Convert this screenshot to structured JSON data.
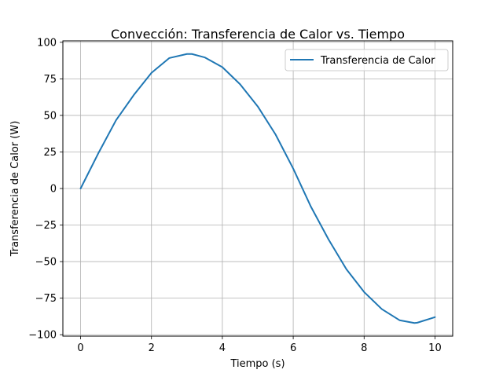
{
  "chart_data": {
    "type": "line",
    "title": "Convección: Transferencia de Calor vs. Tiempo",
    "xlabel": "Tiempo (s)",
    "ylabel": "Transferencia de Calor (W)",
    "xlim": [
      -0.5,
      10.5
    ],
    "ylim": [
      -101,
      101
    ],
    "grid": true,
    "legend_position": "top-right",
    "x_ticks": [
      0,
      2,
      4,
      6,
      8,
      10
    ],
    "x_tick_labels": [
      "0",
      "2",
      "4",
      "6",
      "8",
      "10"
    ],
    "y_ticks": [
      100,
      75,
      50,
      25,
      0,
      -25,
      -50,
      -75,
      -100
    ],
    "y_tick_labels": [
      "100",
      "75",
      "50",
      "25",
      "0",
      "−25",
      "−50",
      "−75",
      "−100"
    ],
    "series": [
      {
        "name": "Transferencia de Calor",
        "color": "#1f77b4",
        "x": [
          0,
          0.5,
          1,
          1.5,
          2,
          2.5,
          3,
          3.14,
          3.5,
          4,
          4.5,
          5,
          5.5,
          6,
          6.5,
          7,
          7.5,
          8,
          8.5,
          9,
          9.42,
          9.5,
          10
        ],
        "y": [
          0,
          24.1,
          46.7,
          63.9,
          79.1,
          89.2,
          92.0,
          92.0,
          89.7,
          83.0,
          71.3,
          56.1,
          37.0,
          13.6,
          -12.5,
          -35.0,
          -55.2,
          -70.8,
          -82.5,
          -90.1,
          -92.0,
          -91.8,
          -88.0
        ]
      }
    ]
  }
}
